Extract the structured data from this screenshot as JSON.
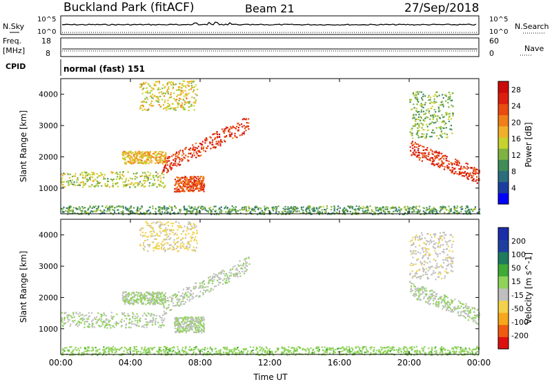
{
  "header": {
    "site": "Buckland Park (fitACF)",
    "beam": "Beam 21",
    "date": "27/Sep/2018"
  },
  "status_panels": {
    "nsky": {
      "label": "N.Sky",
      "ticks": [
        "10^5",
        "10^0"
      ],
      "right_label": "N.Search",
      "right_ticks": [
        "10^5",
        "10^0"
      ]
    },
    "freq": {
      "label_line1": "Freq.",
      "label_line2": "[MHz]",
      "ticks": [
        "18",
        "8"
      ],
      "right_label": "Nave",
      "right_ticks": [
        "60",
        "0"
      ]
    },
    "cpid": {
      "label": "CPID",
      "value": "normal (fast) 151"
    }
  },
  "colors": {
    "power_scale": [
      "#0000ff",
      "#1c3da0",
      "#2a6e7e",
      "#3f8c56",
      "#7fb341",
      "#c8d22f",
      "#f2b02a",
      "#f07f18",
      "#e94b10",
      "#dc1e0f",
      "#cc0a0a"
    ],
    "velocity_scale": [
      "#dd1010",
      "#ef5a10",
      "#f7a71c",
      "#f2d24a",
      "#bfbfbf",
      "#8fd35a",
      "#3faa36",
      "#1f7a5e",
      "#1f3fa0",
      "#1b2da8"
    ]
  },
  "chart_data": [
    {
      "type": "heatmap",
      "title": "Power",
      "ylabel": "Slant Range [km]",
      "xlabel": "",
      "x_ticks": [
        "00:00",
        "04:00",
        "08:00",
        "12:00",
        "16:00",
        "20:00",
        "00:00"
      ],
      "x_range_hours": [
        0,
        24
      ],
      "y_ticks": [
        1000,
        2000,
        3000,
        4000
      ],
      "ylim": [
        180,
        4500
      ],
      "colorbar": {
        "label": "Power [dB]",
        "ticks": [
          4,
          8,
          12,
          16,
          20,
          24,
          28
        ],
        "range": [
          0,
          30
        ]
      },
      "regions": [
        {
          "name": "lower-band",
          "t_start": 0.0,
          "t_end": 6.0,
          "range_start": 1050,
          "range_end": 1550,
          "power": 14
        },
        {
          "name": "rising-arc",
          "t_start": 5.8,
          "t_end": 10.8,
          "range_start": 1500,
          "range_end": 3300,
          "power": 26
        },
        {
          "name": "dip-echo",
          "t_start": 6.5,
          "t_end": 8.2,
          "range_start": 900,
          "range_end": 1400,
          "power": 24
        },
        {
          "name": "high-early",
          "t_start": 4.5,
          "t_end": 7.8,
          "range_start": 3500,
          "range_end": 4450,
          "power": 16
        },
        {
          "name": "scatter-mid",
          "t_start": 3.5,
          "t_end": 6.0,
          "range_start": 1800,
          "range_end": 2200,
          "power": 18
        },
        {
          "name": "evening-descent",
          "t_start": 20.0,
          "t_end": 24.0,
          "range_start": 1100,
          "range_end": 2500,
          "power": 26
        },
        {
          "name": "evening-high",
          "t_start": 20.0,
          "t_end": 22.5,
          "range_start": 2600,
          "range_end": 4100,
          "power": 12
        },
        {
          "name": "ground-noise",
          "t_start": 0.0,
          "t_end": 24.0,
          "range_start": 180,
          "range_end": 450,
          "power": 10
        }
      ]
    },
    {
      "type": "heatmap",
      "title": "Velocity",
      "ylabel": "Slant Range [km]",
      "xlabel": "Time UT",
      "x_ticks": [
        "00:00",
        "04:00",
        "08:00",
        "12:00",
        "16:00",
        "20:00",
        "00:00"
      ],
      "x_range_hours": [
        0,
        24
      ],
      "y_ticks": [
        1000,
        2000,
        3000,
        4000
      ],
      "ylim": [
        180,
        4500
      ],
      "colorbar": {
        "label": "Velocity [m s^-1]",
        "ticks": [
          200,
          100,
          50,
          15,
          -15,
          -50,
          -100,
          -200
        ],
        "range": [
          -250,
          250
        ]
      },
      "regions": [
        {
          "name": "lower-band",
          "t_start": 0.0,
          "t_end": 6.0,
          "range_start": 1050,
          "range_end": 1550,
          "velocity": 0
        },
        {
          "name": "rising-arc",
          "t_start": 5.8,
          "t_end": 10.8,
          "range_start": 1500,
          "range_end": 3300,
          "velocity": -10
        },
        {
          "name": "dip-echo",
          "t_start": 6.5,
          "t_end": 8.2,
          "range_start": 900,
          "range_end": 1400,
          "velocity": 0
        },
        {
          "name": "high-early",
          "t_start": 4.5,
          "t_end": 7.8,
          "range_start": 3500,
          "range_end": 4450,
          "velocity": -60
        },
        {
          "name": "scatter-mid",
          "t_start": 3.5,
          "t_end": 6.0,
          "range_start": 1800,
          "range_end": 2200,
          "velocity": 5
        },
        {
          "name": "evening-descent",
          "t_start": 20.0,
          "t_end": 24.0,
          "range_start": 1100,
          "range_end": 2500,
          "velocity": 0
        },
        {
          "name": "evening-high",
          "t_start": 20.0,
          "t_end": 22.5,
          "range_start": 2600,
          "range_end": 4100,
          "velocity": -40
        },
        {
          "name": "ground-noise",
          "t_start": 0.0,
          "t_end": 24.0,
          "range_start": 180,
          "range_end": 450,
          "velocity": 30
        }
      ]
    }
  ]
}
